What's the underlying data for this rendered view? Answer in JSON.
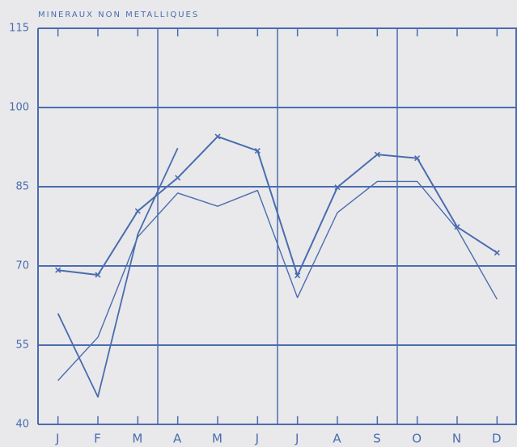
{
  "chart_data": {
    "type": "line",
    "title": "MINERAUX NON METALLIQUES",
    "categories": [
      "J",
      "F",
      "M",
      "A",
      "M",
      "J",
      "J",
      "A",
      "S",
      "O",
      "N",
      "D"
    ],
    "series": [
      {
        "color": "#4a6cb0",
        "marker": "x",
        "width": 2,
        "values": [
          69.2,
          68.3,
          80.4,
          86.7,
          94.5,
          91.8,
          68.2,
          84.9,
          91.1,
          90.4,
          77.4,
          72.5
        ]
      },
      {
        "color": "#4a6cb0",
        "marker": "none",
        "width": 1.4,
        "values": [
          48.3,
          56.5,
          75.5,
          83.8,
          81.3,
          84.3,
          64,
          80.1,
          86,
          86,
          77,
          63.7
        ]
      },
      {
        "color": "#4a6cb0",
        "marker": "none",
        "width": 1.8,
        "values": [
          61,
          45.2,
          76,
          92.3,
          null,
          null,
          null,
          null,
          null,
          null,
          null,
          null
        ]
      }
    ],
    "ylim": [
      40,
      115
    ],
    "yticks": [
      40,
      55,
      70,
      85,
      100,
      115
    ],
    "grid": true
  }
}
